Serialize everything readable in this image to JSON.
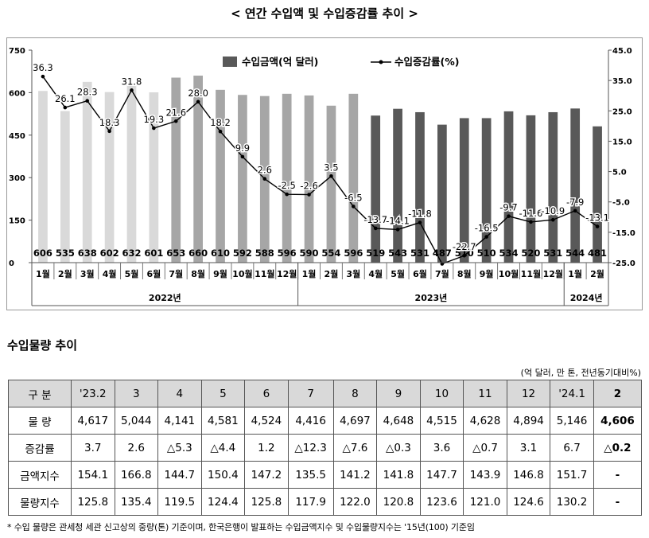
{
  "title": "< 연간 수입액 및 수입증감률 추이 >",
  "chart_data": {
    "type": "bar+line",
    "categories": [
      "1월",
      "2월",
      "3월",
      "4월",
      "5월",
      "6월",
      "7월",
      "8월",
      "9월",
      "10월",
      "11월",
      "12월",
      "1월",
      "2월",
      "3월",
      "4월",
      "5월",
      "6월",
      "7월",
      "8월",
      "9월",
      "10월",
      "11월",
      "12월",
      "1월",
      "2월"
    ],
    "years": [
      {
        "label": "2022년",
        "start": 0,
        "end": 11
      },
      {
        "label": "2023년",
        "start": 12,
        "end": 23
      },
      {
        "label": "2024년",
        "start": 24,
        "end": 25
      }
    ],
    "series": [
      {
        "name": "수입금액(억 달러)",
        "type": "bar",
        "axis": "left",
        "values": [
          606,
          535,
          638,
          602,
          632,
          601,
          653,
          660,
          610,
          592,
          588,
          596,
          590,
          554,
          596,
          519,
          543,
          531,
          487,
          510,
          510,
          534,
          520,
          531,
          544,
          481
        ],
        "value_labels": [
          "606",
          "535",
          "638",
          "602",
          "632",
          "601",
          "653",
          "660",
          "610",
          "592",
          "588",
          "596",
          "590",
          "554",
          "596",
          "519",
          "543",
          "531",
          "487",
          "510",
          "510",
          "534",
          "520",
          "531",
          "544",
          "481"
        ]
      },
      {
        "name": "수입증감률(%)",
        "type": "line",
        "axis": "right",
        "values": [
          36.3,
          26.1,
          28.3,
          18.3,
          31.8,
          19.3,
          21.6,
          28.0,
          18.2,
          9.9,
          2.6,
          -2.5,
          -2.6,
          3.5,
          -6.5,
          -13.7,
          -14.1,
          -11.8,
          -25.4,
          -22.7,
          -16.5,
          -9.7,
          -11.6,
          -10.9,
          -7.9,
          -13.1
        ],
        "value_labels": [
          "36.3",
          "26.1",
          "28.3",
          "18.3",
          "31.8",
          "19.3",
          "21.6",
          "28.0",
          "18.2",
          "9.9",
          "2.6",
          "-2.5",
          "-2.6",
          "3.5",
          "-6.5",
          "-13.7",
          "-14.1",
          "-11.8",
          "",
          "-22.7",
          "-16.5",
          "-9.7",
          "-11.6",
          "-10.9",
          "-7.9",
          "-13.1"
        ]
      }
    ],
    "left_axis": {
      "min": 0,
      "max": 750,
      "ticks": [
        "0",
        "150",
        "300",
        "450",
        "600",
        "750"
      ]
    },
    "right_axis": {
      "min": -25,
      "max": 45,
      "ticks": [
        "-25.0",
        "-15.0",
        "-5.0",
        "5.0",
        "15.0",
        "25.0",
        "35.0",
        "45.0"
      ]
    },
    "legend_position": "top-center",
    "colors": {
      "bar_light": "#d9d9d9",
      "bar_mid": "#a6a6a6",
      "bar_dark": "#595959",
      "line": "#000000"
    },
    "bar_color_groups": {
      "light_until": 5,
      "mid_until": 14
    }
  },
  "table": {
    "title": "수입물량 추이",
    "unit": "(억 달러, 만 톤, 전년동기대비%)",
    "headers": [
      "구 분",
      "'23.2",
      "3",
      "4",
      "5",
      "6",
      "7",
      "8",
      "9",
      "10",
      "11",
      "12",
      "'24.1",
      "2"
    ],
    "rows": [
      {
        "label": "물 량",
        "values": [
          "4,617",
          "5,044",
          "4,141",
          "4,581",
          "4,524",
          "4,416",
          "4,697",
          "4,648",
          "4,515",
          "4,628",
          "4,894",
          "5,146",
          "4,606"
        ]
      },
      {
        "label": "증감률",
        "values": [
          "3.7",
          "2.6",
          "△5.3",
          "△4.4",
          "1.2",
          "△12.3",
          "△7.6",
          "△0.3",
          "3.6",
          "△0.7",
          "3.1",
          "6.7",
          "△0.2"
        ]
      },
      {
        "label": "금액지수",
        "values": [
          "154.1",
          "166.8",
          "144.7",
          "150.4",
          "147.2",
          "135.5",
          "141.2",
          "141.8",
          "147.7",
          "143.9",
          "146.8",
          "151.7",
          "-"
        ]
      },
      {
        "label": "물량지수",
        "values": [
          "125.8",
          "135.4",
          "119.5",
          "124.4",
          "125.8",
          "117.9",
          "122.0",
          "120.8",
          "123.6",
          "121.0",
          "124.6",
          "130.2",
          "-"
        ]
      }
    ]
  },
  "footnote": "* 수입 물량은 관세청 세관 신고상의 중량(톤) 기준이며, 한국은행이 발표하는 수입금액지수 및 수입물량지수는 '15년(100) 기준임"
}
